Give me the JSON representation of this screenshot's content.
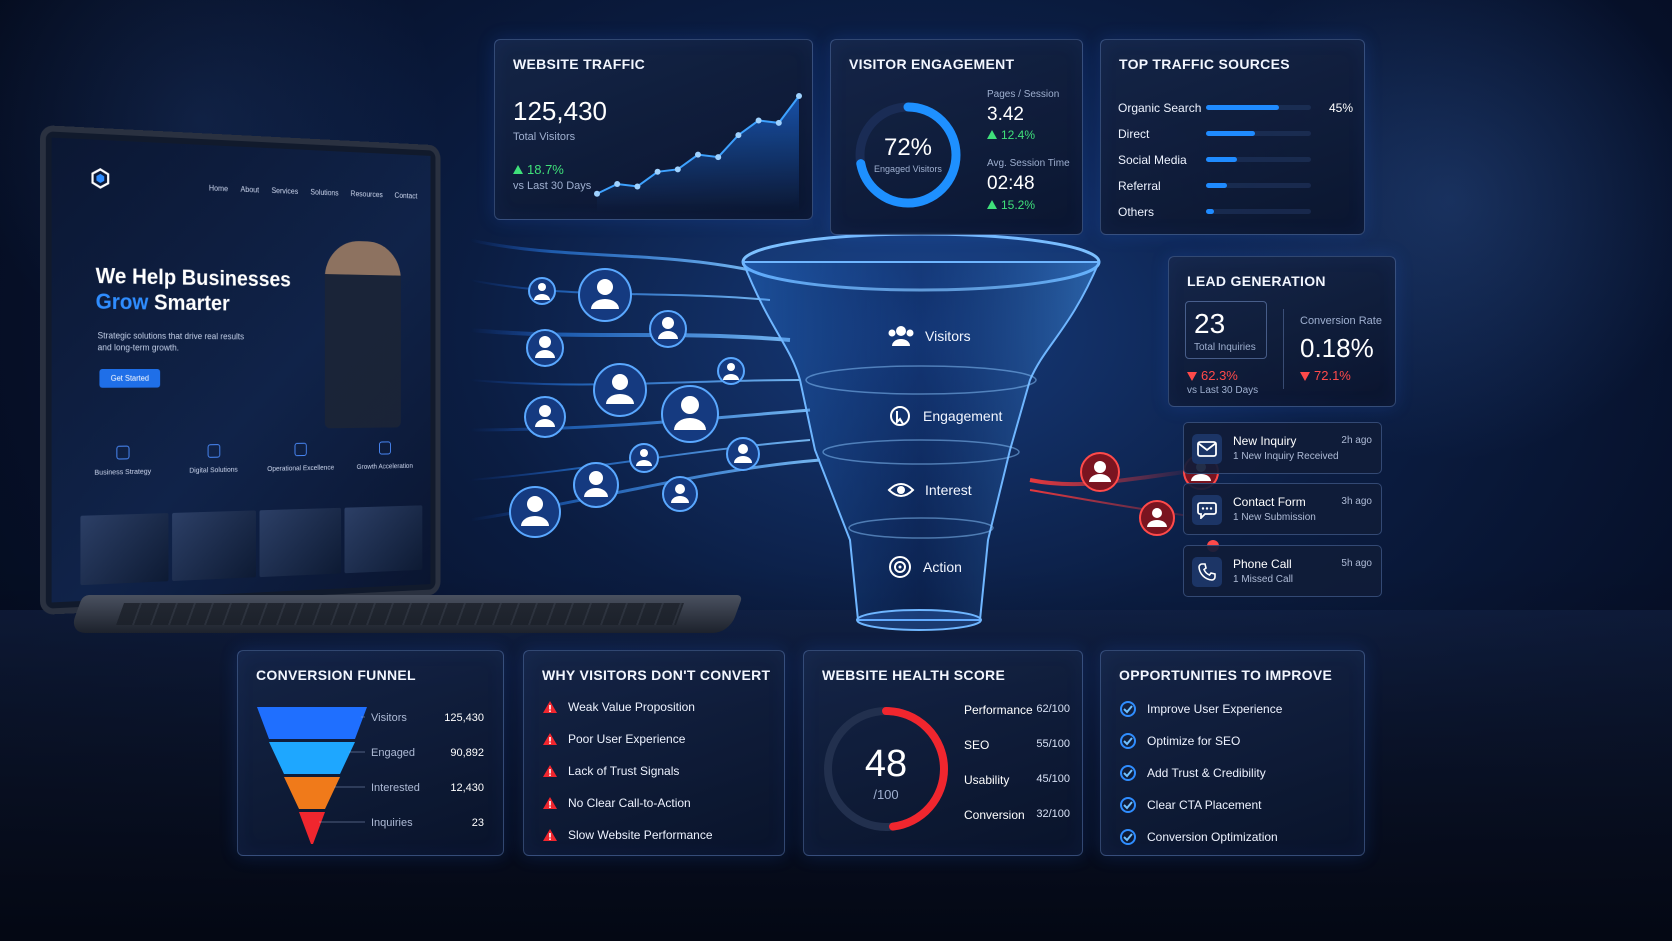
{
  "laptop": {
    "nav": [
      "Home",
      "About",
      "Services",
      "Solutions",
      "Resources",
      "Contact"
    ],
    "headline_line1": "We Help Businesses",
    "headline_accent": "Grow",
    "headline_rest": "Smarter",
    "subtext": "Strategic solutions that drive real results and long-term growth.",
    "cta": "Get Started",
    "features": [
      "Business Strategy",
      "Digital Solutions",
      "Operational Excellence",
      "Growth Acceleration"
    ]
  },
  "funnel": {
    "stages": [
      "Visitors",
      "Engagement",
      "Interest",
      "Action"
    ]
  },
  "traffic": {
    "title": "WEBSITE TRAFFIC",
    "value": "125,430",
    "label": "Total Visitors",
    "change": "18.7%",
    "period": "vs Last 30 Days",
    "series": [
      10,
      18,
      16,
      28,
      30,
      42,
      40,
      58,
      70,
      68,
      90
    ]
  },
  "engagement": {
    "title": "VISITOR ENGAGEMENT",
    "percent_value": 72,
    "percent": "72%",
    "percent_label": "Engaged Visitors",
    "pages_label": "Pages / Session",
    "pages_value": "3.42",
    "pages_change": "12.4%",
    "time_label": "Avg. Session Time",
    "time_value": "02:48",
    "time_change": "15.2%"
  },
  "sources": {
    "title": "TOP TRAFFIC SOURCES",
    "items": [
      {
        "name": "Organic Search",
        "value": 45,
        "label": "45%"
      },
      {
        "name": "Direct",
        "value": 30
      },
      {
        "name": "Social Media",
        "value": 19
      },
      {
        "name": "Referral",
        "value": 13
      },
      {
        "name": "Others",
        "value": 5
      }
    ]
  },
  "lead": {
    "title": "LEAD GENERATION",
    "inquiries": "23",
    "inquiries_label": "Total Inquiries",
    "inquiries_change": "62.3%",
    "period": "vs Last 30 Days",
    "rate_label": "Conversion Rate",
    "rate": "0.18%",
    "rate_change": "72.1%"
  },
  "notifications": [
    {
      "title": "New Inquiry",
      "sub": "1 New Inquiry Received",
      "time": "2h ago",
      "icon": "mail-icon"
    },
    {
      "title": "Contact Form",
      "sub": "1 New Submission",
      "time": "3h ago",
      "icon": "chat-icon"
    },
    {
      "title": "Phone Call",
      "sub": "1 Missed Call",
      "time": "5h ago",
      "icon": "phone-icon"
    }
  ],
  "conversion_funnel": {
    "title": "CONVERSION FUNNEL",
    "rows": [
      {
        "label": "Visitors",
        "value": "125,430",
        "color": "#1f6fff"
      },
      {
        "label": "Engaged",
        "value": "90,892",
        "color": "#1ea7ff"
      },
      {
        "label": "Interested",
        "value": "12,430",
        "color": "#f07a1a"
      },
      {
        "label": "Inquiries",
        "value": "23",
        "color": "#f0262e"
      }
    ]
  },
  "why": {
    "title": "WHY VISITORS DON'T CONVERT",
    "items": [
      "Weak Value Proposition",
      "Poor User Experience",
      "Lack of Trust Signals",
      "No Clear Call-to-Action",
      "Slow Website Performance"
    ]
  },
  "health": {
    "title": "WEBSITE HEALTH SCORE",
    "score_value": 48,
    "score": "48",
    "out_of": "/100",
    "metrics": [
      {
        "label": "Performance",
        "value": "62/100"
      },
      {
        "label": "SEO",
        "value": "55/100"
      },
      {
        "label": "Usability",
        "value": "45/100"
      },
      {
        "label": "Conversion",
        "value": "32/100"
      }
    ]
  },
  "opportunities": {
    "title": "OPPORTUNITIES TO IMPROVE",
    "items": [
      "Improve User Experience",
      "Optimize for SEO",
      "Add Trust & Credibility",
      "Clear CTA Placement",
      "Conversion Optimization"
    ]
  },
  "colors": {
    "accent": "#2f8dff",
    "positive": "#3fe07a",
    "negative": "#ff4a4a"
  }
}
